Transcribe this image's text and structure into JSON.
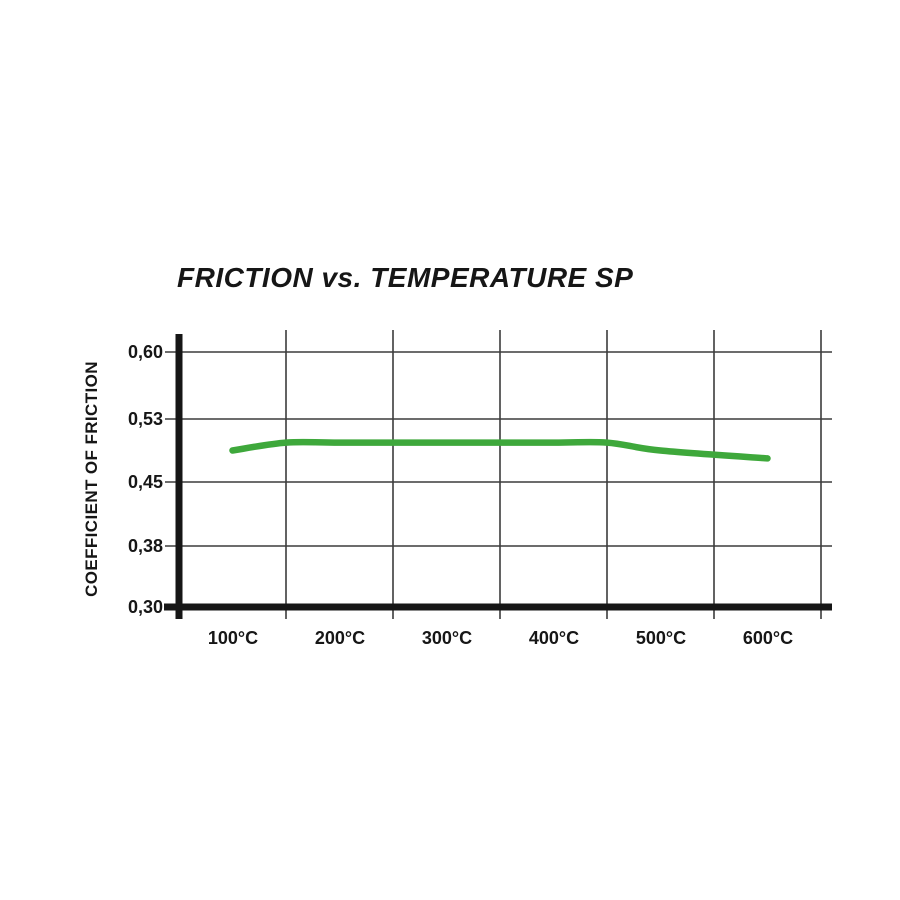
{
  "page": {
    "background": "#ffffff"
  },
  "chart_data": {
    "type": "line",
    "title": "FRICTION vs. TEMPERATURE SP",
    "ylabel": "COEFFICIENT OF FRICTION",
    "xlabel": "",
    "series": [
      {
        "name": "SP",
        "x": [
          100,
          150,
          200,
          300,
          400,
          450,
          500,
          600
        ],
        "y": [
          0.49,
          0.5,
          0.5,
          0.5,
          0.5,
          0.5,
          0.49,
          0.48
        ]
      }
    ],
    "x_tick_labels": [
      "100°C",
      "200°C",
      "300°C",
      "400°C",
      "500°C",
      "600°C"
    ],
    "x_tick_values": [
      100,
      200,
      300,
      400,
      500,
      600
    ],
    "y_tick_labels": [
      "0,60",
      "0,53",
      "0,45",
      "0,38",
      "0,30"
    ],
    "y_tick_values": [
      0.6,
      0.53,
      0.45,
      0.38,
      0.3
    ],
    "xlim": [
      50,
      650
    ],
    "ylim": [
      0.3,
      0.6
    ],
    "grid": "on",
    "legend_position": "none",
    "line_color": "#3ea83b",
    "axis_color": "#161616"
  }
}
